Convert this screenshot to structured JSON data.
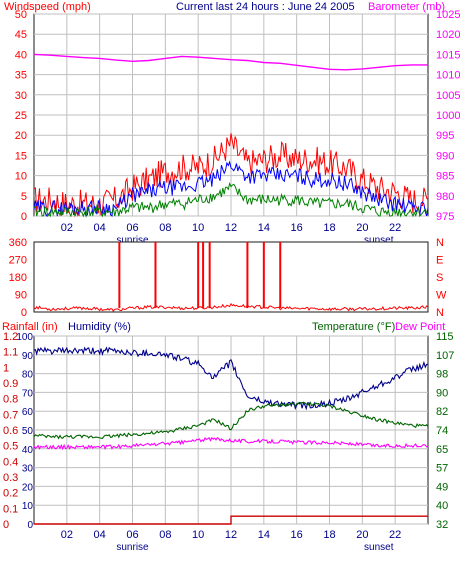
{
  "header": {
    "left": "Windspeed (mph)",
    "center": "Current last 24 hours : June 24 2005",
    "right": "Barometer (mb)"
  },
  "colors": {
    "frame": "#1a1a1a",
    "grid": "#bfbfbf",
    "windspeed": "#ff0000",
    "gust": "#ff0000",
    "wind_avg": "#0000ff",
    "wind_low": "#008000",
    "barometer": "#ff00ff",
    "direction": "#ff0000",
    "rainfall": "#cc0000",
    "humidity": "#00008b",
    "temperature": "#006400",
    "dewpoint": "#ff00ff",
    "time_axis": "#00008b"
  },
  "time_axis": {
    "ticks": [
      "02",
      "04",
      "06",
      "08",
      "10",
      "12",
      "14",
      "16",
      "18",
      "20",
      "22"
    ],
    "sunrise_label": "sunrise",
    "sunset_label": "sunset"
  },
  "chart_data": [
    {
      "type": "line",
      "panel": "wind",
      "title": "Current last 24 hours : June 24 2005",
      "ylabel": "Windspeed (mph)",
      "y2label": "Barometer (mb)",
      "ylim": [
        0,
        50
      ],
      "y2lim": [
        975,
        1025
      ],
      "yticks": [
        "0",
        "5",
        "10",
        "15",
        "20",
        "25",
        "30",
        "35",
        "40",
        "45",
        "50"
      ],
      "y2ticks": [
        "975",
        "980",
        "985",
        "990",
        "995",
        "1000",
        "1005",
        "1010",
        "1015",
        "1020",
        "1025"
      ],
      "x_hours": [
        0,
        1,
        2,
        3,
        4,
        5,
        6,
        7,
        8,
        9,
        10,
        11,
        12,
        13,
        14,
        15,
        16,
        17,
        18,
        19,
        20,
        21,
        22,
        23,
        24
      ],
      "series": [
        {
          "values": [
            4,
            4,
            3,
            3,
            3,
            4,
            7,
            9,
            11,
            12,
            12,
            14,
            18,
            13,
            14,
            15,
            14,
            14,
            13,
            12,
            9,
            7,
            6,
            4,
            4
          ]
        },
        {
          "values": [
            2,
            2,
            2,
            2,
            2,
            2,
            5,
            6,
            7,
            7,
            8,
            9,
            13,
            10,
            10,
            10,
            10,
            9,
            9,
            8,
            6,
            4,
            3,
            2,
            2
          ]
        },
        {
          "values": [
            1,
            1,
            1,
            1,
            1,
            1,
            2,
            2,
            3,
            3,
            4,
            5,
            7,
            4,
            4,
            4,
            4,
            3,
            3,
            3,
            2,
            1,
            1,
            1,
            1
          ]
        },
        {
          "axis": "y2",
          "values": [
            1015,
            1014.8,
            1014.5,
            1014.2,
            1014,
            1013.6,
            1013.3,
            1013.5,
            1014,
            1014.5,
            1014.3,
            1014,
            1013.7,
            1013.5,
            1013,
            1012.8,
            1012.3,
            1011.8,
            1011.3,
            1011.2,
            1011.4,
            1011.8,
            1012.2,
            1012.4,
            1012.4
          ]
        }
      ]
    },
    {
      "type": "line",
      "panel": "direction",
      "ylim": [
        0,
        360
      ],
      "yticks": [
        "0",
        "90",
        "180",
        "270",
        "360"
      ],
      "compass": [
        "N",
        "W",
        "S",
        "E",
        "N"
      ],
      "x_hours": [
        0,
        1,
        2,
        3,
        4,
        5,
        6,
        7,
        8,
        9,
        10,
        11,
        12,
        13,
        14,
        15,
        16,
        17,
        18,
        19,
        20,
        21,
        22,
        23,
        24
      ],
      "series": [
        {
          "values": [
            25,
            15,
            18,
            20,
            15,
            10,
            20,
            25,
            25,
            20,
            20,
            25,
            35,
            30,
            25,
            20,
            18,
            18,
            15,
            15,
            15,
            18,
            20,
            20,
            25
          ]
        }
      ],
      "spikes_hours": [
        5.2,
        7.4,
        10.0,
        10.3,
        10.7,
        13.0,
        14.0,
        15.0
      ],
      "spike_value": 360
    },
    {
      "type": "line",
      "panel": "humidity_temperature",
      "labels": {
        "rainfall": "Rainfall (in)",
        "humidity": "Humidity (%)",
        "temperature": "Temperature (°F)",
        "dewpoint": "Dew Point"
      },
      "rain_ylim": [
        0,
        1.2
      ],
      "humidity_ylim": [
        0,
        100
      ],
      "temp_ylim": [
        32,
        115
      ],
      "rain_ticks": [
        "0",
        "0.1",
        "0.2",
        "0.3",
        "0.4",
        "0.5",
        "0.6",
        "0.7",
        "0.8",
        "0.9",
        "1",
        "1.1",
        "1.2"
      ],
      "humidity_ticks": [
        "0",
        "10",
        "20",
        "30",
        "40",
        "50",
        "60",
        "70",
        "80",
        "90",
        "100"
      ],
      "temp_ticks": [
        "32",
        "40",
        "49",
        "57",
        "65",
        "74",
        "82",
        "90",
        "98",
        "107",
        "115"
      ],
      "x_hours": [
        0,
        1,
        2,
        3,
        4,
        5,
        6,
        7,
        8,
        9,
        10,
        11,
        12,
        13,
        14,
        15,
        16,
        17,
        18,
        19,
        20,
        21,
        22,
        23,
        24
      ],
      "series": [
        {
          "name": "Humidity (%)",
          "values": [
            92,
            92,
            92,
            92,
            92,
            92,
            91,
            91,
            90,
            88,
            85,
            78,
            86,
            68,
            65,
            64,
            63,
            63,
            64,
            66,
            70,
            74,
            78,
            82,
            85
          ]
        },
        {
          "name": "Temperature (°F)",
          "values": [
            71,
            70.5,
            70.5,
            70.5,
            70.5,
            71,
            71.5,
            72,
            72.5,
            74,
            75.5,
            78,
            74,
            82,
            84,
            84.5,
            85,
            85,
            84,
            82,
            80,
            78,
            76.5,
            75.5,
            75
          ]
        },
        {
          "name": "Dew Point",
          "values": [
            66,
            66,
            66,
            66,
            66,
            66,
            66.5,
            67,
            67.5,
            68,
            69,
            69.5,
            69,
            68.5,
            68.5,
            68.5,
            68,
            68,
            68,
            67.5,
            67,
            66.5,
            66.5,
            66.5,
            66.5
          ]
        },
        {
          "name": "Rainfall (in)",
          "values": [
            0,
            0,
            0,
            0,
            0,
            0,
            0,
            0,
            0,
            0,
            0,
            0,
            0.05,
            0.05,
            0.05,
            0.05,
            0.05,
            0.05,
            0.05,
            0.05,
            0.05,
            0.05,
            0.05,
            0.05,
            0.05
          ]
        }
      ]
    }
  ]
}
